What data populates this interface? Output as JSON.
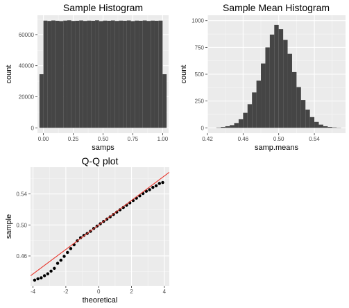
{
  "chart_data": [
    {
      "type": "bar",
      "title": "Sample Histogram",
      "xlabel": "samps",
      "ylabel": "count",
      "xlim": [
        -0.05,
        1.05
      ],
      "ylim": [
        -3450,
        72450
      ],
      "xticks": [
        "0.00",
        "0.25",
        "0.50",
        "0.75",
        "1.00"
      ],
      "yticks": [
        "0",
        "20000",
        "40000",
        "60000"
      ],
      "bin_width": 0.03333,
      "categories": [
        -0.0167,
        0.0167,
        0.05,
        0.0833,
        0.1167,
        0.15,
        0.1833,
        0.2167,
        0.25,
        0.2833,
        0.3167,
        0.35,
        0.3833,
        0.4167,
        0.45,
        0.4833,
        0.5167,
        0.55,
        0.5833,
        0.6167,
        0.65,
        0.6833,
        0.7167,
        0.75,
        0.7833,
        0.8167,
        0.85,
        0.8833,
        0.9167,
        0.95,
        0.9833,
        1.0167
      ],
      "values": [
        34500,
        69000,
        68800,
        69100,
        68900,
        68700,
        69000,
        69200,
        68800,
        68900,
        69100,
        68800,
        69000,
        68900,
        69200,
        68700,
        69000,
        68900,
        69100,
        68800,
        69000,
        68900,
        69100,
        68700,
        69000,
        68900,
        69100,
        68800,
        69000,
        68900,
        69000,
        34500
      ],
      "grid": true
    },
    {
      "type": "bar",
      "title": "Sample Mean Histogram",
      "xlabel": "samp.means",
      "ylabel": "count",
      "xlim": [
        0.42,
        0.575
      ],
      "ylim": [
        -50,
        1050
      ],
      "xticks": [
        "0.42",
        "0.46",
        "0.50",
        "0.54"
      ],
      "yticks": [
        "0",
        "250",
        "500",
        "750",
        "1000"
      ],
      "bin_width": 0.005,
      "categories": [
        0.4325,
        0.4375,
        0.4425,
        0.4475,
        0.4525,
        0.4575,
        0.4625,
        0.4675,
        0.4725,
        0.4775,
        0.4825,
        0.4875,
        0.4925,
        0.4975,
        0.5025,
        0.5075,
        0.5125,
        0.5175,
        0.5225,
        0.5275,
        0.5325,
        0.5375,
        0.5425,
        0.5475,
        0.5525,
        0.5575,
        0.5625,
        0.5675
      ],
      "values": [
        3,
        8,
        15,
        25,
        45,
        80,
        140,
        220,
        330,
        440,
        600,
        750,
        870,
        960,
        920,
        820,
        690,
        520,
        380,
        260,
        170,
        100,
        55,
        30,
        15,
        8,
        4,
        2
      ],
      "grid": true
    },
    {
      "type": "scatter",
      "title": "Q-Q plot",
      "xlabel": "theoretical",
      "ylabel": "sample",
      "xlim": [
        -4.15,
        4.3
      ],
      "ylim": [
        0.4215,
        0.5745
      ],
      "xticks": [
        "-4",
        "-2",
        "0",
        "2",
        "4"
      ],
      "yticks": [
        "0.46",
        "0.50",
        "0.54"
      ],
      "reference_line": {
        "intercept": 0.5,
        "slope": 0.0158,
        "color": "#e8352b"
      },
      "x": [
        -3.9,
        -3.7,
        -3.5,
        -3.3,
        -3.1,
        -2.9,
        -2.7,
        -2.5,
        -2.3,
        -2.1,
        -1.9,
        -1.7,
        -1.5,
        -1.3,
        -1.1,
        -0.9,
        -0.7,
        -0.5,
        -0.3,
        -0.1,
        0.1,
        0.3,
        0.5,
        0.7,
        0.9,
        1.1,
        1.3,
        1.5,
        1.7,
        1.9,
        2.1,
        2.3,
        2.5,
        2.7,
        2.9,
        3.1,
        3.3,
        3.5,
        3.7,
        3.9
      ],
      "y": [
        0.4288,
        0.4305,
        0.4318,
        0.4345,
        0.437,
        0.4405,
        0.444,
        0.4505,
        0.4545,
        0.4595,
        0.4645,
        0.4695,
        0.4745,
        0.4795,
        0.4835,
        0.4865,
        0.489,
        0.4918,
        0.4955,
        0.4985,
        0.5015,
        0.5045,
        0.5075,
        0.5105,
        0.5135,
        0.5165,
        0.5195,
        0.5225,
        0.5255,
        0.5285,
        0.5315,
        0.5345,
        0.5375,
        0.5405,
        0.5435,
        0.5455,
        0.5485,
        0.5505,
        0.5535,
        0.5548
      ],
      "point_color": "#000000",
      "grid": true
    }
  ]
}
